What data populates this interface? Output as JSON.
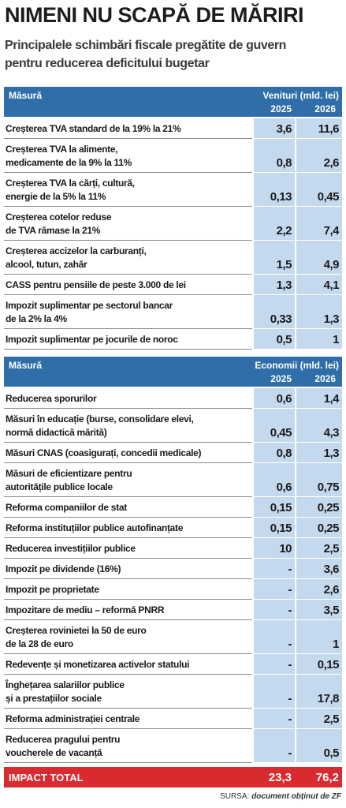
{
  "header": {
    "title": "NIMENI NU SCAPĂ DE MĂRIRI",
    "subtitle": [
      "Principalele schimbări fiscale pregătite de guvern",
      "pentru reducerea deficitului bugetar"
    ]
  },
  "sections": [
    {
      "measure": "Măsură",
      "group": "Venituri (mld. lei)",
      "years": [
        "2025",
        "2026"
      ],
      "rows": [
        {
          "lines": [
            "Creșterea TVA standard de la 19% la 21%"
          ],
          "values": [
            "3,6",
            "11,6"
          ]
        },
        {
          "lines": [
            "Creșterea TVA la alimente,",
            "medicamente de la 9% la 11%"
          ],
          "values": [
            "0,8",
            "2,6"
          ]
        },
        {
          "lines": [
            "Creșterea TVA la cărți, cultură,",
            "energie de la 5% la 11%"
          ],
          "values": [
            "0,13",
            "0,45"
          ]
        },
        {
          "lines": [
            "Creșterea cotelor reduse",
            "de TVA rămase la 21%"
          ],
          "values": [
            "2,2",
            "7,4"
          ]
        },
        {
          "lines": [
            "Creșterea accizelor la carburanți,",
            "alcool, tutun, zahăr"
          ],
          "values": [
            "1,5",
            "4,9"
          ]
        },
        {
          "lines": [
            "CASS pentru pensiile de peste 3.000 de lei"
          ],
          "values": [
            "1,3",
            "4,1"
          ]
        },
        {
          "lines": [
            "Impozit suplimentar pe sectorul bancar",
            "de la 2% la 4%"
          ],
          "values": [
            "0,33",
            "1,3"
          ]
        },
        {
          "lines": [
            "Impozit suplimentar pe jocurile de noroc"
          ],
          "values": [
            "0,5",
            "1"
          ]
        }
      ]
    },
    {
      "measure": "Măsură",
      "group": "Economii (mld. lei)",
      "years": [
        "2025",
        "2026"
      ],
      "rows": [
        {
          "lines": [
            "Reducerea sporurilor"
          ],
          "values": [
            "0,6",
            "1,4"
          ]
        },
        {
          "lines": [
            "Măsuri în educație (burse, consolidare elevi,",
            "normă didactică mărită)"
          ],
          "values": [
            "0,45",
            "4,3"
          ]
        },
        {
          "lines": [
            "Măsuri CNAS (coasigurați, concedii medicale)"
          ],
          "values": [
            "0,8",
            "1,3"
          ]
        },
        {
          "lines": [
            "Măsuri de eficientizare pentru",
            "autoritățile publice locale"
          ],
          "values": [
            "0,6",
            "0,75"
          ]
        },
        {
          "lines": [
            "Reforma companiilor de stat"
          ],
          "values": [
            "0,15",
            "0,25"
          ]
        },
        {
          "lines": [
            "Reforma instituțiilor publice autofinanțate"
          ],
          "values": [
            "0,15",
            "0,25"
          ]
        },
        {
          "lines": [
            "Reducerea investițiilor publice"
          ],
          "values": [
            "10",
            "2,5"
          ]
        },
        {
          "lines": [
            "Impozit pe dividende (16%)"
          ],
          "values": [
            "-",
            "3,6"
          ]
        },
        {
          "lines": [
            "Impozit pe proprietate"
          ],
          "values": [
            "-",
            "2,6"
          ]
        },
        {
          "lines": [
            "Impozitare de mediu – reformă PNRR"
          ],
          "values": [
            "-",
            "3,5"
          ]
        },
        {
          "lines": [
            "Creșterea rovinietei la 50 de euro",
            "de la 28 de euro"
          ],
          "values": [
            "-",
            "1"
          ]
        },
        {
          "lines": [
            "Redevențe și monetizarea activelor statului"
          ],
          "values": [
            "-",
            "0,15"
          ]
        },
        {
          "lines": [
            "Înghețarea salariilor publice",
            "și a prestațiilor sociale"
          ],
          "values": [
            "-",
            "17,8"
          ]
        },
        {
          "lines": [
            "Reforma administrației centrale"
          ],
          "values": [
            "-",
            "2,5"
          ]
        },
        {
          "lines": [
            "Reducerea pragului pentru",
            "voucherele de vacanță"
          ],
          "values": [
            "-",
            "0,5"
          ]
        }
      ]
    }
  ],
  "total": {
    "label": "IMPACT TOTAL",
    "values": [
      "23,3",
      "76,2"
    ]
  },
  "source": {
    "prefix": "SURSA:",
    "text": "document obținut de",
    "brand": "ZF"
  }
}
